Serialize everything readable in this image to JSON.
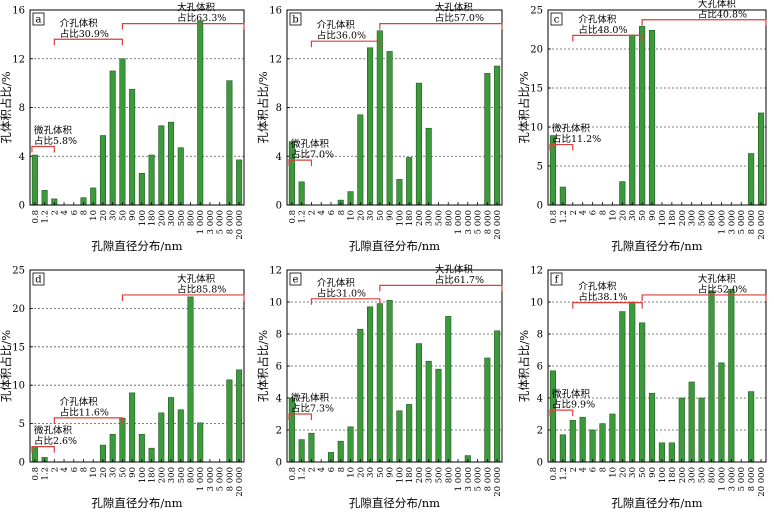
{
  "chart_data": [
    {
      "type": "bar",
      "panel_label": "a",
      "xlabel": "孔隙直径分布/nm",
      "ylabel": "孔体积占比/%",
      "ylim": [
        0,
        16
      ],
      "yticks": [
        0,
        4,
        8,
        12,
        16
      ],
      "grid": "horizontal dashed",
      "categories": [
        "0.8",
        "1.2",
        "2",
        "4",
        "6",
        "8",
        "10",
        "20",
        "30",
        "50",
        "90",
        "100",
        "180",
        "200",
        "300",
        "500",
        "800",
        "1 000",
        "3 000",
        "5 000",
        "8 000",
        "20 000"
      ],
      "values": [
        4.1,
        1.2,
        0.5,
        0,
        0,
        0.6,
        1.4,
        5.7,
        11.0,
        12.0,
        9.5,
        2.6,
        4.1,
        6.5,
        6.8,
        4.7,
        0,
        15.1,
        0,
        0,
        10.2,
        3.7
      ],
      "annotations": [
        {
          "title": "微孔体积",
          "text": "占比5.8%",
          "from": 0,
          "to": 2
        },
        {
          "title": "介孔体积",
          "text": "占比30.9%",
          "from": 2,
          "to": 9
        },
        {
          "title": "大孔体积",
          "text": "占比63.3%",
          "from": 9,
          "to": 21
        }
      ]
    },
    {
      "type": "bar",
      "panel_label": "b",
      "xlabel": "孔隙直径分布/nm",
      "ylabel": "孔体积占比/%",
      "ylim": [
        0,
        16
      ],
      "yticks": [
        0,
        4,
        8,
        12,
        16
      ],
      "grid": "horizontal dashed",
      "categories": [
        "0.8",
        "1.2",
        "2",
        "4",
        "6",
        "8",
        "10",
        "20",
        "30",
        "50",
        "90",
        "100",
        "180",
        "200",
        "300",
        "500",
        "800",
        "1 000",
        "3 000",
        "5 000",
        "8 000",
        "20 000"
      ],
      "values": [
        5.2,
        1.9,
        0,
        0,
        0,
        0.4,
        1.1,
        7.4,
        12.9,
        14.3,
        12.6,
        2.1,
        3.9,
        10.0,
        6.3,
        0,
        0,
        0,
        0,
        0,
        10.8,
        11.4
      ],
      "annotations": [
        {
          "title": "微孔体积",
          "text": "占比7.0%",
          "from": 0,
          "to": 2
        },
        {
          "title": "介孔体积",
          "text": "占比36.0%",
          "from": 2,
          "to": 9
        },
        {
          "title": "大孔体积",
          "text": "占比57.0%",
          "from": 9,
          "to": 21
        }
      ]
    },
    {
      "type": "bar",
      "panel_label": "c",
      "xlabel": "孔隙直径分布/nm",
      "ylabel": "孔体积占比/%",
      "ylim": [
        0,
        25
      ],
      "yticks": [
        0,
        5,
        10,
        15,
        20,
        25
      ],
      "grid": "horizontal dashed",
      "categories": [
        "0.8",
        "1.2",
        "2",
        "4",
        "6",
        "8",
        "10",
        "20",
        "30",
        "50",
        "90",
        "100",
        "180",
        "200",
        "300",
        "500",
        "800",
        "1 000",
        "3 000",
        "5 000",
        "8 000",
        "20 000"
      ],
      "values": [
        8.9,
        2.3,
        0,
        0,
        0,
        0,
        0,
        3.0,
        21.8,
        22.9,
        22.4,
        0,
        0,
        0,
        0,
        0,
        0,
        0,
        0,
        0,
        6.6,
        11.8
      ],
      "annotations": [
        {
          "title": "微孔体积",
          "text": "占比11.2%",
          "from": 0,
          "to": 2
        },
        {
          "title": "介孔体积",
          "text": "占比48.0%",
          "from": 2,
          "to": 9
        },
        {
          "title": "大孔体积",
          "text": "占比40.8%",
          "from": 9,
          "to": 21
        }
      ]
    },
    {
      "type": "bar",
      "panel_label": "d",
      "xlabel": "孔隙直径分布/nm",
      "ylabel": "孔体积占比/%",
      "ylim": [
        0,
        25
      ],
      "yticks": [
        0,
        5,
        10,
        15,
        20,
        25
      ],
      "grid": "horizontal dashed",
      "categories": [
        "0.8",
        "1.2",
        "2",
        "4",
        "6",
        "8",
        "10",
        "20",
        "30",
        "50",
        "90",
        "100",
        "180",
        "200",
        "300",
        "500",
        "800",
        "1 000",
        "3 000",
        "5 000",
        "8 000",
        "20 000"
      ],
      "values": [
        2.0,
        0.6,
        0,
        0,
        0,
        0,
        0,
        2.2,
        3.6,
        5.7,
        9.0,
        3.6,
        1.8,
        6.4,
        8.4,
        6.8,
        21.5,
        5.1,
        0,
        0,
        10.7,
        12.0
      ],
      "annotations": [
        {
          "title": "微孔体积",
          "text": "占比2.6%",
          "from": 0,
          "to": 2
        },
        {
          "title": "介孔体积",
          "text": "占比11.6%",
          "from": 2,
          "to": 9
        },
        {
          "title": "大孔体积",
          "text": "占比85.8%",
          "from": 9,
          "to": 21
        }
      ]
    },
    {
      "type": "bar",
      "panel_label": "e",
      "xlabel": "孔隙直径分布/nm",
      "ylabel": "孔体积占比/%",
      "ylim": [
        0,
        12
      ],
      "yticks": [
        0,
        2,
        4,
        6,
        8,
        10,
        12
      ],
      "grid": "horizontal dashed",
      "categories": [
        "0.8",
        "1.2",
        "2",
        "4",
        "6",
        "8",
        "10",
        "20",
        "30",
        "50",
        "90",
        "100",
        "180",
        "200",
        "300",
        "500",
        "800",
        "1 000",
        "3 000",
        "5 000",
        "8 000",
        "20 000"
      ],
      "values": [
        4.0,
        1.4,
        1.8,
        0,
        0.6,
        1.3,
        2.2,
        8.3,
        9.7,
        9.9,
        10.1,
        3.2,
        3.6,
        7.4,
        6.3,
        5.8,
        9.1,
        0,
        0.4,
        0,
        6.5,
        8.2
      ],
      "annotations": [
        {
          "title": "微孔体积",
          "text": "占比7.3%",
          "from": 0,
          "to": 2
        },
        {
          "title": "介孔体积",
          "text": "占比31.0%",
          "from": 2,
          "to": 9
        },
        {
          "title": "大孔体积",
          "text": "占比61.7%",
          "from": 9,
          "to": 21
        }
      ]
    },
    {
      "type": "bar",
      "panel_label": "f",
      "xlabel": "孔隙直径分布/nm",
      "ylabel": "孔体积占比/%",
      "ylim": [
        0,
        12
      ],
      "yticks": [
        0,
        2,
        4,
        6,
        8,
        10,
        12
      ],
      "grid": "horizontal dashed",
      "categories": [
        "0.8",
        "1.2",
        "2",
        "4",
        "6",
        "8",
        "10",
        "20",
        "30",
        "50",
        "90",
        "100",
        "180",
        "200",
        "300",
        "500",
        "800",
        "1 000",
        "3 000",
        "5 000",
        "8 000",
        "20 000"
      ],
      "values": [
        5.7,
        1.7,
        2.6,
        2.8,
        2.0,
        2.4,
        3.0,
        9.4,
        10.0,
        8.7,
        4.3,
        1.2,
        1.2,
        4.0,
        5.0,
        4.0,
        10.7,
        6.2,
        10.8,
        0,
        4.4,
        0
      ],
      "annotations": [
        {
          "title": "微孔体积",
          "text": "占比9.9%",
          "from": 0,
          "to": 2
        },
        {
          "title": "介孔体积",
          "text": "占比38.1%",
          "from": 2,
          "to": 9
        },
        {
          "title": "大孔体积",
          "text": "占比52.0%",
          "from": 9,
          "to": 21
        }
      ]
    }
  ],
  "colors": {
    "bar_fill": "#3c9a3c",
    "bar_stroke": "#1f5a1f",
    "bracket": "#d9403a",
    "grid": "#555555",
    "axis": "#000000"
  }
}
